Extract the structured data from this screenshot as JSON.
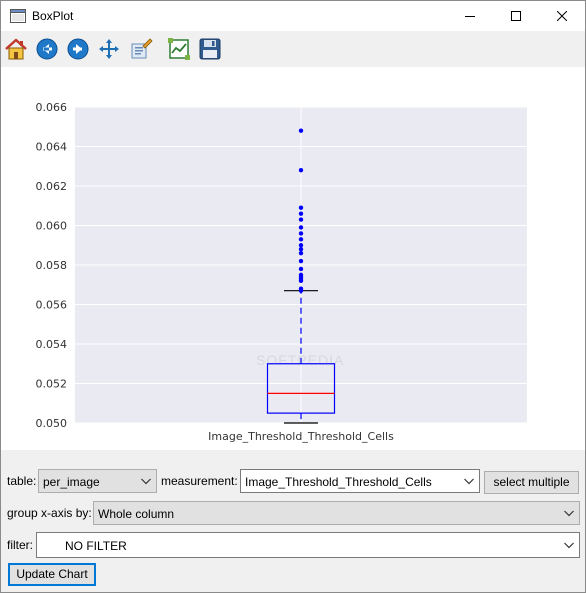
{
  "window": {
    "title": "BoxPlot"
  },
  "toolbar": {
    "icons": [
      "home-icon",
      "back-icon",
      "forward-icon",
      "pan-icon",
      "zoom-icon",
      "subplots-icon",
      "save-icon"
    ]
  },
  "chart_data": {
    "type": "box",
    "categories": [
      "Image_Threshold_Threshold_Cells"
    ],
    "ylim": [
      0.05,
      0.066
    ],
    "yticks": [
      "0.050",
      "0.052",
      "0.054",
      "0.056",
      "0.058",
      "0.060",
      "0.062",
      "0.064",
      "0.066"
    ],
    "ytick_values": [
      0.05,
      0.052,
      0.054,
      0.056,
      0.058,
      0.06,
      0.062,
      0.064,
      0.066
    ],
    "box": {
      "lower_whisker": 0.05,
      "q1": 0.0505,
      "median": 0.0515,
      "q3": 0.053,
      "upper_whisker": 0.0567
    },
    "outliers": [
      0.0648,
      0.0628,
      0.0609,
      0.0606,
      0.0603,
      0.0599,
      0.0596,
      0.0593,
      0.059,
      0.0588,
      0.0586,
      0.0582,
      0.0578,
      0.0575,
      0.0574,
      0.0573,
      0.0572,
      0.0568,
      0.0567
    ],
    "colors": {
      "box": "#0000ff",
      "median": "#ff0000",
      "whisker_cap": "#000000",
      "background": "#eaeaf2",
      "grid": "#ffffff"
    },
    "grid": true
  },
  "controls": {
    "table_label": "table:",
    "table_value": "per_image",
    "measurement_label": "measurement:",
    "measurement_value": "Image_Threshold_Threshold_Cells",
    "select_multiple_label": "select multiple",
    "group_label": "group x-axis by:",
    "group_value": "Whole column",
    "filter_label": "filter:",
    "filter_value": "NO FILTER",
    "update_label": "Update Chart"
  }
}
